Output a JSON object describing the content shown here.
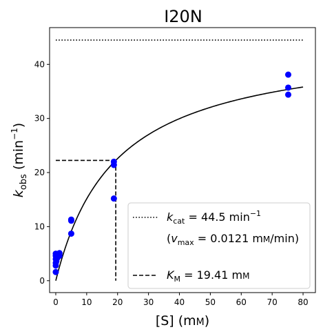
{
  "chart_data": {
    "type": "scatter",
    "title": "I20N",
    "xlabel": {
      "base": "[S] (m",
      "small": "M",
      "close": ")"
    },
    "ylabel": {
      "k": "k",
      "sub": "obs",
      "unit_open": " (min",
      "sup": "−1",
      "unit_close": ")"
    },
    "xlim": [
      -2,
      84
    ],
    "ylim": [
      -2.2,
      46.8
    ],
    "xticks": [
      0,
      10,
      20,
      30,
      40,
      50,
      60,
      70,
      80
    ],
    "yticks": [
      0,
      10,
      20,
      30,
      40
    ],
    "grid": false,
    "colors": {
      "points": "#0000ff",
      "fit": "#000000",
      "axes": "#000000",
      "legend_border": "#cccccc"
    },
    "series": [
      {
        "kind": "points",
        "x": [
          0,
          0,
          0,
          0,
          0,
          0,
          0.2,
          0.5,
          1.2,
          1.2,
          5,
          5,
          5,
          18.8,
          18.8,
          18.8,
          75.2,
          75.2,
          75.2
        ],
        "y": [
          1.6,
          2.8,
          3.3,
          4.0,
          4.6,
          5.0,
          3.6,
          4.2,
          4.6,
          5.1,
          8.7,
          11.1,
          11.3,
          15.2,
          21.4,
          22.0,
          34.4,
          35.7,
          38.1
        ]
      },
      {
        "kind": "fit",
        "model": "michaelis-menten",
        "kcat": 44.5,
        "Km": 19.41,
        "x_range": [
          0,
          80
        ]
      },
      {
        "kind": "kcat-line",
        "y": 44.5,
        "x_range": [
          0,
          80
        ]
      },
      {
        "kind": "km-line",
        "x": 19.41,
        "y": 22.25
      }
    ],
    "legend": {
      "placement": "lower-right",
      "kcat": {
        "k": "k",
        "sub": "cat",
        "value": " = 44.5 min",
        "sup": "−1"
      },
      "vmax": {
        "open": "(",
        "v": "v",
        "sub": "max",
        "rest": " = 0.0121 m",
        "small": "M",
        "unit": "/min)"
      },
      "km": {
        "k": "K",
        "sub": "M",
        "value": " = 19.41 m",
        "small": "M"
      }
    }
  }
}
